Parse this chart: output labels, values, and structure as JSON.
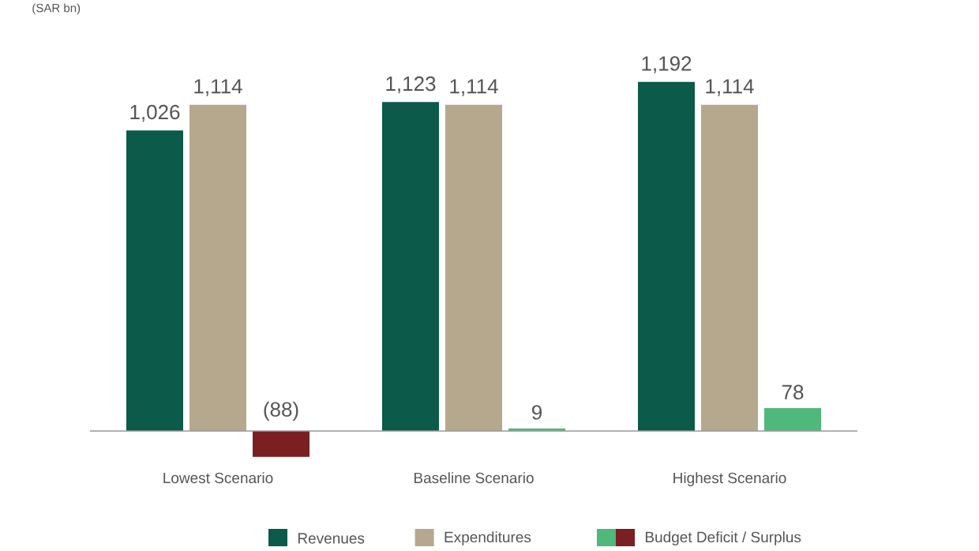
{
  "chart_data": {
    "type": "bar",
    "annotations": [
      "(SAR bn)"
    ],
    "categories": [
      "Lowest Scenario",
      "Baseline Scenario",
      "Highest Scenario"
    ],
    "series": [
      {
        "name": "Revenues",
        "color": "#0b5a4a",
        "values": [
          1026,
          1123,
          1192
        ],
        "value_labels": [
          "1,026",
          "1,123",
          "1,192"
        ]
      },
      {
        "name": "Expenditures",
        "color": "#b5a88c",
        "values": [
          1114,
          1114,
          1114
        ],
        "value_labels": [
          "1,114",
          "1,114",
          "1,114"
        ]
      },
      {
        "name": "Budget Deficit / Surplus",
        "colors": [
          "#7a1f22",
          "#4fb87a",
          "#4fb87a"
        ],
        "values": [
          -88,
          9,
          78
        ],
        "value_labels": [
          "(88)",
          "9",
          "78"
        ]
      }
    ],
    "legend": "bottom"
  }
}
